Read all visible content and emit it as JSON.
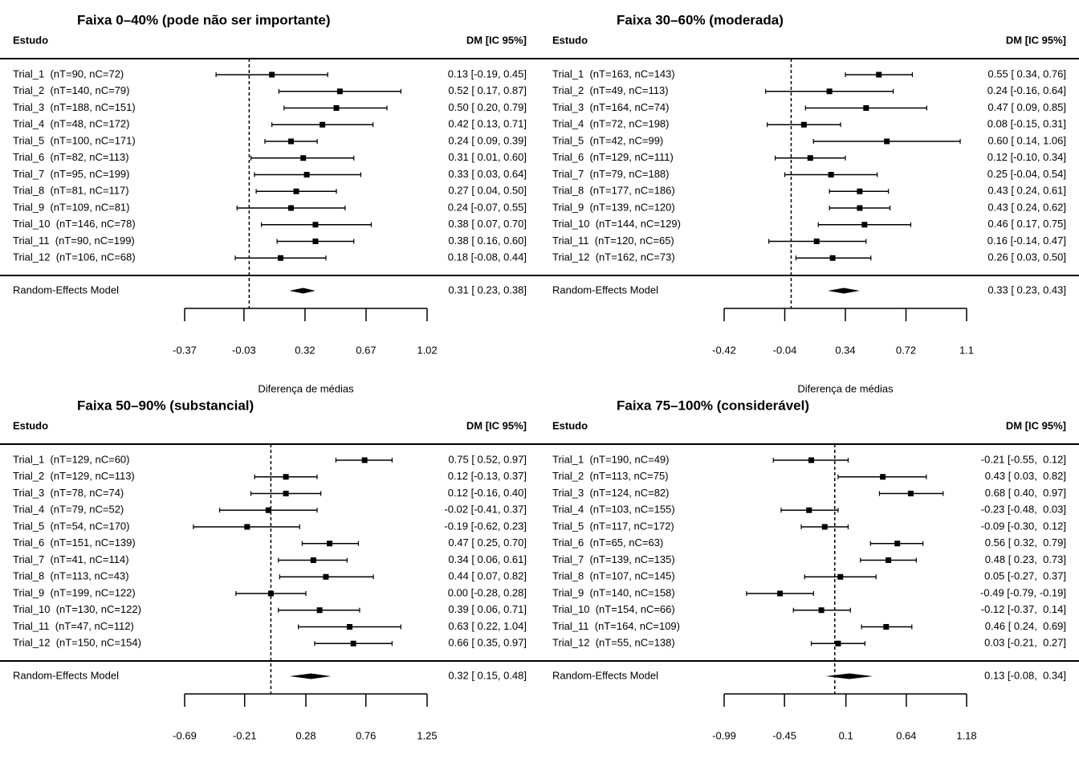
{
  "chart_data": [
    {
      "type": "forest",
      "title": "Faixa 0–40% (pode não ser importante)",
      "study_header": "Estudo",
      "effect_header": "DM [IC 95%]",
      "studies": [
        "Trial_1  (nT=90, nC=72)",
        "Trial_2  (nT=140, nC=79)",
        "Trial_3  (nT=188, nC=151)",
        "Trial_4  (nT=48, nC=172)",
        "Trial_5  (nT=100, nC=171)",
        "Trial_6  (nT=82, nC=113)",
        "Trial_7  (nT=95, nC=199)",
        "Trial_8  (nT=81, nC=117)",
        "Trial_9  (nT=109, nC=81)",
        "Trial_10  (nT=146, nC=78)",
        "Trial_11  (nT=90, nC=199)",
        "Trial_12  (nT=106, nC=68)"
      ],
      "values": [
        0.13,
        0.52,
        0.5,
        0.42,
        0.24,
        0.31,
        0.33,
        0.27,
        0.24,
        0.38,
        0.38,
        0.18
      ],
      "lower": [
        -0.19,
        0.17,
        0.2,
        0.13,
        0.09,
        0.01,
        0.03,
        0.04,
        -0.07,
        0.07,
        0.16,
        -0.08
      ],
      "upper": [
        0.45,
        0.87,
        0.79,
        0.71,
        0.39,
        0.6,
        0.64,
        0.5,
        0.55,
        0.7,
        0.6,
        0.44
      ],
      "value_labels": [
        "0.13 [-0.19, 0.45]",
        "0.52 [ 0.17, 0.87]",
        "0.50 [ 0.20, 0.79]",
        "0.42 [ 0.13, 0.71]",
        "0.24 [ 0.09, 0.39]",
        "0.31 [ 0.01, 0.60]",
        "0.33 [ 0.03, 0.64]",
        "0.27 [ 0.04, 0.50]",
        "0.24 [-0.07, 0.55]",
        "0.38 [ 0.07, 0.70]",
        "0.38 [ 0.16, 0.60]",
        "0.18 [-0.08, 0.44]"
      ],
      "summary": {
        "name": "Random-Effects Model",
        "value": 0.31,
        "lower": 0.23,
        "upper": 0.38,
        "value_label": "0.31 [ 0.23, 0.38]"
      },
      "xlim": [
        -0.37,
        1.02
      ],
      "xticks": [
        -0.37,
        -0.03,
        0.32,
        0.67,
        1.02
      ],
      "refline": 0,
      "xlabel": "Diferença de médias"
    },
    {
      "type": "forest",
      "title": "Faixa 30–60% (moderada)",
      "study_header": "Estudo",
      "effect_header": "DM [IC 95%]",
      "studies": [
        "Trial_1  (nT=163, nC=143)",
        "Trial_2  (nT=49, nC=113)",
        "Trial_3  (nT=164, nC=74)",
        "Trial_4  (nT=72, nC=198)",
        "Trial_5  (nT=42, nC=99)",
        "Trial_6  (nT=129, nC=111)",
        "Trial_7  (nT=79, nC=188)",
        "Trial_8  (nT=177, nC=186)",
        "Trial_9  (nT=139, nC=120)",
        "Trial_10  (nT=144, nC=129)",
        "Trial_11  (nT=120, nC=65)",
        "Trial_12  (nT=162, nC=73)"
      ],
      "values": [
        0.55,
        0.24,
        0.47,
        0.08,
        0.6,
        0.12,
        0.25,
        0.43,
        0.43,
        0.46,
        0.16,
        0.26
      ],
      "lower": [
        0.34,
        -0.16,
        0.09,
        -0.15,
        0.14,
        -0.1,
        -0.04,
        0.24,
        0.24,
        0.17,
        -0.14,
        0.03
      ],
      "upper": [
        0.76,
        0.64,
        0.85,
        0.31,
        1.06,
        0.34,
        0.54,
        0.61,
        0.62,
        0.75,
        0.47,
        0.5
      ],
      "value_labels": [
        "0.55 [ 0.34, 0.76]",
        "0.24 [-0.16, 0.64]",
        "0.47 [ 0.09, 0.85]",
        "0.08 [-0.15, 0.31]",
        "0.60 [ 0.14, 1.06]",
        "0.12 [-0.10, 0.34]",
        "0.25 [-0.04, 0.54]",
        "0.43 [ 0.24, 0.61]",
        "0.43 [ 0.24, 0.62]",
        "0.46 [ 0.17, 0.75]",
        "0.16 [-0.14, 0.47]",
        "0.26 [ 0.03, 0.50]"
      ],
      "summary": {
        "name": "Random-Effects Model",
        "value": 0.33,
        "lower": 0.23,
        "upper": 0.43,
        "value_label": "0.33 [ 0.23, 0.43]"
      },
      "xlim": [
        -0.42,
        1.1
      ],
      "xticks": [
        -0.42,
        -0.04,
        0.34,
        0.72,
        1.1
      ],
      "refline": 0,
      "xlabel": "Diferença de médias"
    },
    {
      "type": "forest",
      "title": "Faixa 50–90% (substancial)",
      "study_header": "Estudo",
      "effect_header": "DM [IC 95%]",
      "studies": [
        "Trial_1  (nT=129, nC=60)",
        "Trial_2  (nT=129, nC=113)",
        "Trial_3  (nT=78, nC=74)",
        "Trial_4  (nT=79, nC=52)",
        "Trial_5  (nT=54, nC=170)",
        "Trial_6  (nT=151, nC=139)",
        "Trial_7  (nT=41, nC=114)",
        "Trial_8  (nT=113, nC=43)",
        "Trial_9  (nT=199, nC=122)",
        "Trial_10  (nT=130, nC=122)",
        "Trial_11  (nT=47, nC=112)",
        "Trial_12  (nT=150, nC=154)"
      ],
      "values": [
        0.75,
        0.12,
        0.12,
        -0.02,
        -0.19,
        0.47,
        0.34,
        0.44,
        0.0,
        0.39,
        0.63,
        0.66
      ],
      "lower": [
        0.52,
        -0.13,
        -0.16,
        -0.41,
        -0.62,
        0.25,
        0.06,
        0.07,
        -0.28,
        0.06,
        0.22,
        0.35
      ],
      "upper": [
        0.97,
        0.37,
        0.4,
        0.37,
        0.23,
        0.7,
        0.61,
        0.82,
        0.28,
        0.71,
        1.04,
        0.97
      ],
      "value_labels": [
        "0.75 [ 0.52, 0.97]",
        "0.12 [-0.13, 0.37]",
        "0.12 [-0.16, 0.40]",
        "-0.02 [-0.41, 0.37]",
        "-0.19 [-0.62, 0.23]",
        "0.47 [ 0.25, 0.70]",
        "0.34 [ 0.06, 0.61]",
        "0.44 [ 0.07, 0.82]",
        "0.00 [-0.28, 0.28]",
        "0.39 [ 0.06, 0.71]",
        "0.63 [ 0.22, 1.04]",
        "0.66 [ 0.35, 0.97]"
      ],
      "summary": {
        "name": "Random-Effects Model",
        "value": 0.32,
        "lower": 0.15,
        "upper": 0.48,
        "value_label": "0.32 [ 0.15, 0.48]"
      },
      "xlim": [
        -0.69,
        1.25
      ],
      "xticks": [
        -0.69,
        -0.21,
        0.28,
        0.76,
        1.25
      ],
      "refline": 0
    },
    {
      "type": "forest",
      "title": "Faixa 75–100% (considerável)",
      "study_header": "Estudo",
      "effect_header": "DM [IC 95%]",
      "studies": [
        "Trial_1  (nT=190, nC=49)",
        "Trial_2  (nT=113, nC=75)",
        "Trial_3  (nT=124, nC=82)",
        "Trial_4  (nT=103, nC=155)",
        "Trial_5  (nT=117, nC=172)",
        "Trial_6  (nT=65, nC=63)",
        "Trial_7  (nT=139, nC=135)",
        "Trial_8  (nT=107, nC=145)",
        "Trial_9  (nT=140, nC=158)",
        "Trial_10  (nT=154, nC=66)",
        "Trial_11  (nT=164, nC=109)",
        "Trial_12  (nT=55, nC=138)"
      ],
      "values": [
        -0.21,
        0.43,
        0.68,
        -0.23,
        -0.09,
        0.56,
        0.48,
        0.05,
        -0.49,
        -0.12,
        0.46,
        0.03
      ],
      "lower": [
        -0.55,
        0.03,
        0.4,
        -0.48,
        -0.3,
        0.32,
        0.23,
        -0.27,
        -0.79,
        -0.37,
        0.24,
        -0.21
      ],
      "upper": [
        0.12,
        0.82,
        0.97,
        0.03,
        0.12,
        0.79,
        0.73,
        0.37,
        -0.19,
        0.14,
        0.69,
        0.27
      ],
      "value_labels": [
        "-0.21 [-0.55,  0.12]",
        "0.43 [ 0.03,  0.82]",
        "0.68 [ 0.40,  0.97]",
        "-0.23 [-0.48,  0.03]",
        "-0.09 [-0.30,  0.12]",
        "0.56 [ 0.32,  0.79]",
        "0.48 [ 0.23,  0.73]",
        "0.05 [-0.27,  0.37]",
        "-0.49 [-0.79, -0.19]",
        "-0.12 [-0.37,  0.14]",
        "0.46 [ 0.24,  0.69]",
        "0.03 [-0.21,  0.27]"
      ],
      "summary": {
        "name": "Random-Effects Model",
        "value": 0.13,
        "lower": -0.08,
        "upper": 0.34,
        "value_label": "0.13 [-0.08,  0.34]"
      },
      "xlim": [
        -0.99,
        1.18
      ],
      "xticks": [
        -0.99,
        -0.45,
        0.1,
        0.64,
        1.18
      ],
      "refline": 0
    }
  ]
}
